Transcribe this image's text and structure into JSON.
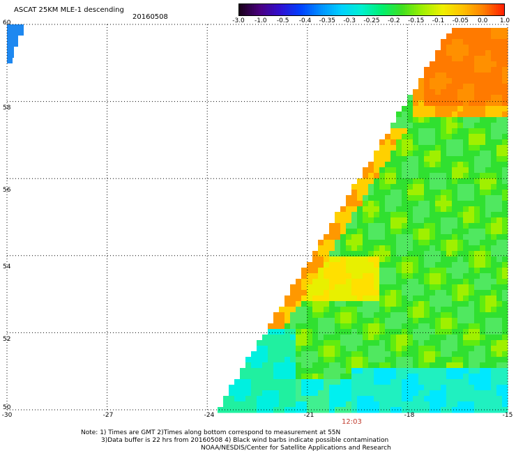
{
  "header": {
    "title": "ASCAT 25KM MLE-1 descending",
    "date": "20160508"
  },
  "colorbar": {
    "labels": [
      "-3.0",
      "-1.0",
      "-0.5",
      "-0.4",
      "-0.35",
      "-0.3",
      "-0.25",
      "-0.2",
      "-0.15",
      "-0.1",
      "-0.05",
      "0.0",
      "1.0"
    ],
    "colors": [
      "#200020",
      "#5a0090",
      "#2a10e0",
      "#0050ff",
      "#00a0ff",
      "#00e8f0",
      "#00f0b0",
      "#20e040",
      "#80f000",
      "#e8f000",
      "#ffc000",
      "#ff7800",
      "#ff2000"
    ]
  },
  "map": {
    "lat_labels": [
      "60",
      "58",
      "56",
      "54",
      "52",
      "50"
    ],
    "lon_labels": [
      "-30",
      "-27",
      "-24",
      "-21",
      "-18",
      "-15"
    ],
    "time_label": "12:03"
  },
  "footer": {
    "note1": "Note: 1) Times are GMT 2)Times along bottom correspond to measurement at 55N",
    "note2": "3)Data buffer is 22 hrs from 20160508 4) Black wind barbs indicate possible contamination",
    "note3": "NOAA/NESDIS/Center for Satellite Applications and Research"
  }
}
